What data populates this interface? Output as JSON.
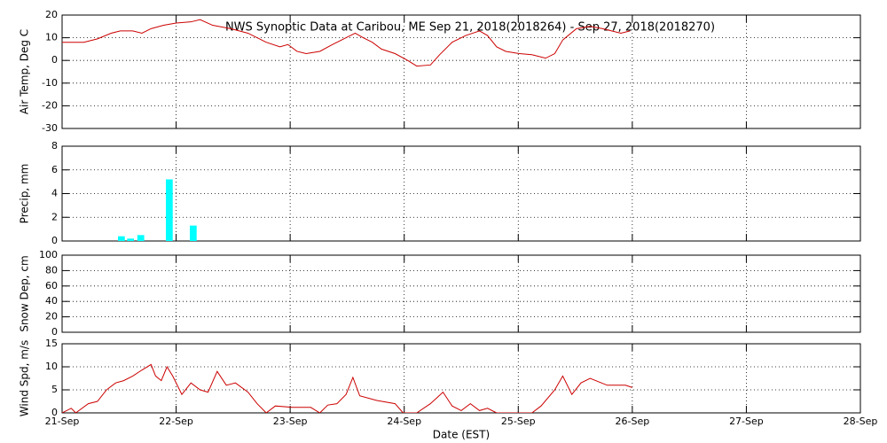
{
  "chart_data": [
    {
      "type": "line",
      "title": "NWS Synoptic Data at Caribou, ME   Sep 21, 2018(2018264) - Sep 27, 2018(2018270)",
      "ylabel": "Air Temp, Deg C",
      "xlim": [
        0,
        7
      ],
      "ylim": [
        -30,
        20
      ],
      "yticks": [
        -30,
        -20,
        -10,
        0,
        10,
        20
      ],
      "grid": true,
      "color": "#cc0000",
      "x": [
        0,
        0.19,
        0.31,
        0.43,
        0.51,
        0.62,
        0.7,
        0.78,
        0.89,
        1.0,
        1.13,
        1.21,
        1.32,
        1.48,
        1.63,
        1.79,
        1.91,
        1.98,
        2.06,
        2.14,
        2.26,
        2.37,
        2.49,
        2.57,
        2.64,
        2.72,
        2.8,
        2.92,
        3.03,
        3.11,
        3.23,
        3.31,
        3.42,
        3.54,
        3.66,
        3.73,
        3.81,
        3.89,
        4.01,
        4.12,
        4.24,
        4.32,
        4.39,
        4.51,
        4.63,
        4.74,
        4.9,
        4.98
      ],
      "values": [
        8,
        8,
        9.5,
        12,
        13,
        13,
        12,
        14,
        15.5,
        16.5,
        17,
        18,
        15.5,
        14,
        12,
        8,
        6,
        7,
        4,
        3,
        4,
        7,
        10,
        12,
        10,
        8,
        5,
        3,
        0,
        -2.5,
        -2,
        2.5,
        8,
        11,
        13,
        11,
        6,
        4,
        3,
        2.5,
        1,
        3,
        9,
        14,
        15,
        14,
        12,
        13
      ]
    },
    {
      "type": "bar",
      "ylabel": "Precip, mm",
      "xlim": [
        0,
        7
      ],
      "ylim": [
        0,
        8
      ],
      "yticks": [
        0,
        2,
        4,
        6,
        8
      ],
      "grid": true,
      "color": "#00ffff",
      "x": [
        0.52,
        0.6,
        0.69,
        0.94,
        1.15
      ],
      "values": [
        0.4,
        0.2,
        0.5,
        5.2,
        1.3
      ]
    },
    {
      "type": "line",
      "ylabel": "Snow Dep, cm",
      "xlim": [
        0,
        7
      ],
      "ylim": [
        0,
        100
      ],
      "yticks": [
        0,
        20,
        40,
        60,
        80,
        100
      ],
      "grid": true
    },
    {
      "type": "line",
      "ylabel": "Wind Spd, m/s",
      "xlabel": "Date (EST)",
      "xlim": [
        0,
        7
      ],
      "ylim": [
        0,
        15
      ],
      "yticks": [
        0,
        5,
        10,
        15
      ],
      "grid": true,
      "color": "#cc0000",
      "xticks": [
        {
          "value": 0,
          "label": "21-Sep"
        },
        {
          "value": 1,
          "label": "22-Sep"
        },
        {
          "value": 2,
          "label": "23-Sep"
        },
        {
          "value": 3,
          "label": "24-Sep"
        },
        {
          "value": 4,
          "label": "25-Sep"
        },
        {
          "value": 5,
          "label": "26-Sep"
        },
        {
          "value": 6,
          "label": "27-Sep"
        },
        {
          "value": 7,
          "label": "28-Sep"
        }
      ],
      "x": [
        0,
        0.08,
        0.12,
        0.23,
        0.31,
        0.39,
        0.47,
        0.54,
        0.62,
        0.7,
        0.78,
        0.82,
        0.87,
        0.92,
        0.97,
        1.05,
        1.13,
        1.21,
        1.28,
        1.36,
        1.44,
        1.52,
        1.63,
        1.71,
        1.79,
        1.87,
        2.02,
        2.18,
        2.26,
        2.33,
        2.41,
        2.49,
        2.55,
        2.61,
        2.76,
        2.92,
        2.99,
        3.11,
        3.23,
        3.34,
        3.42,
        3.5,
        3.58,
        3.66,
        3.73,
        3.81,
        4.12,
        4.2,
        4.32,
        4.39,
        4.47,
        4.55,
        4.63,
        4.78,
        4.94,
        5.0
      ],
      "values": [
        0,
        1,
        0,
        2,
        2.5,
        5,
        6.5,
        7,
        8,
        9.3,
        10.5,
        8,
        7,
        10,
        8,
        4,
        6.5,
        5,
        4.5,
        9,
        6,
        6.5,
        4.5,
        2,
        0,
        1.5,
        1.2,
        1.2,
        0,
        1.7,
        2,
        4,
        7.7,
        3.7,
        2.7,
        2,
        0,
        0,
        2,
        4.5,
        1.5,
        0.5,
        2,
        0.5,
        1,
        0,
        0,
        1.5,
        5,
        8,
        4,
        6.5,
        7.5,
        6,
        6,
        5.5
      ]
    }
  ]
}
